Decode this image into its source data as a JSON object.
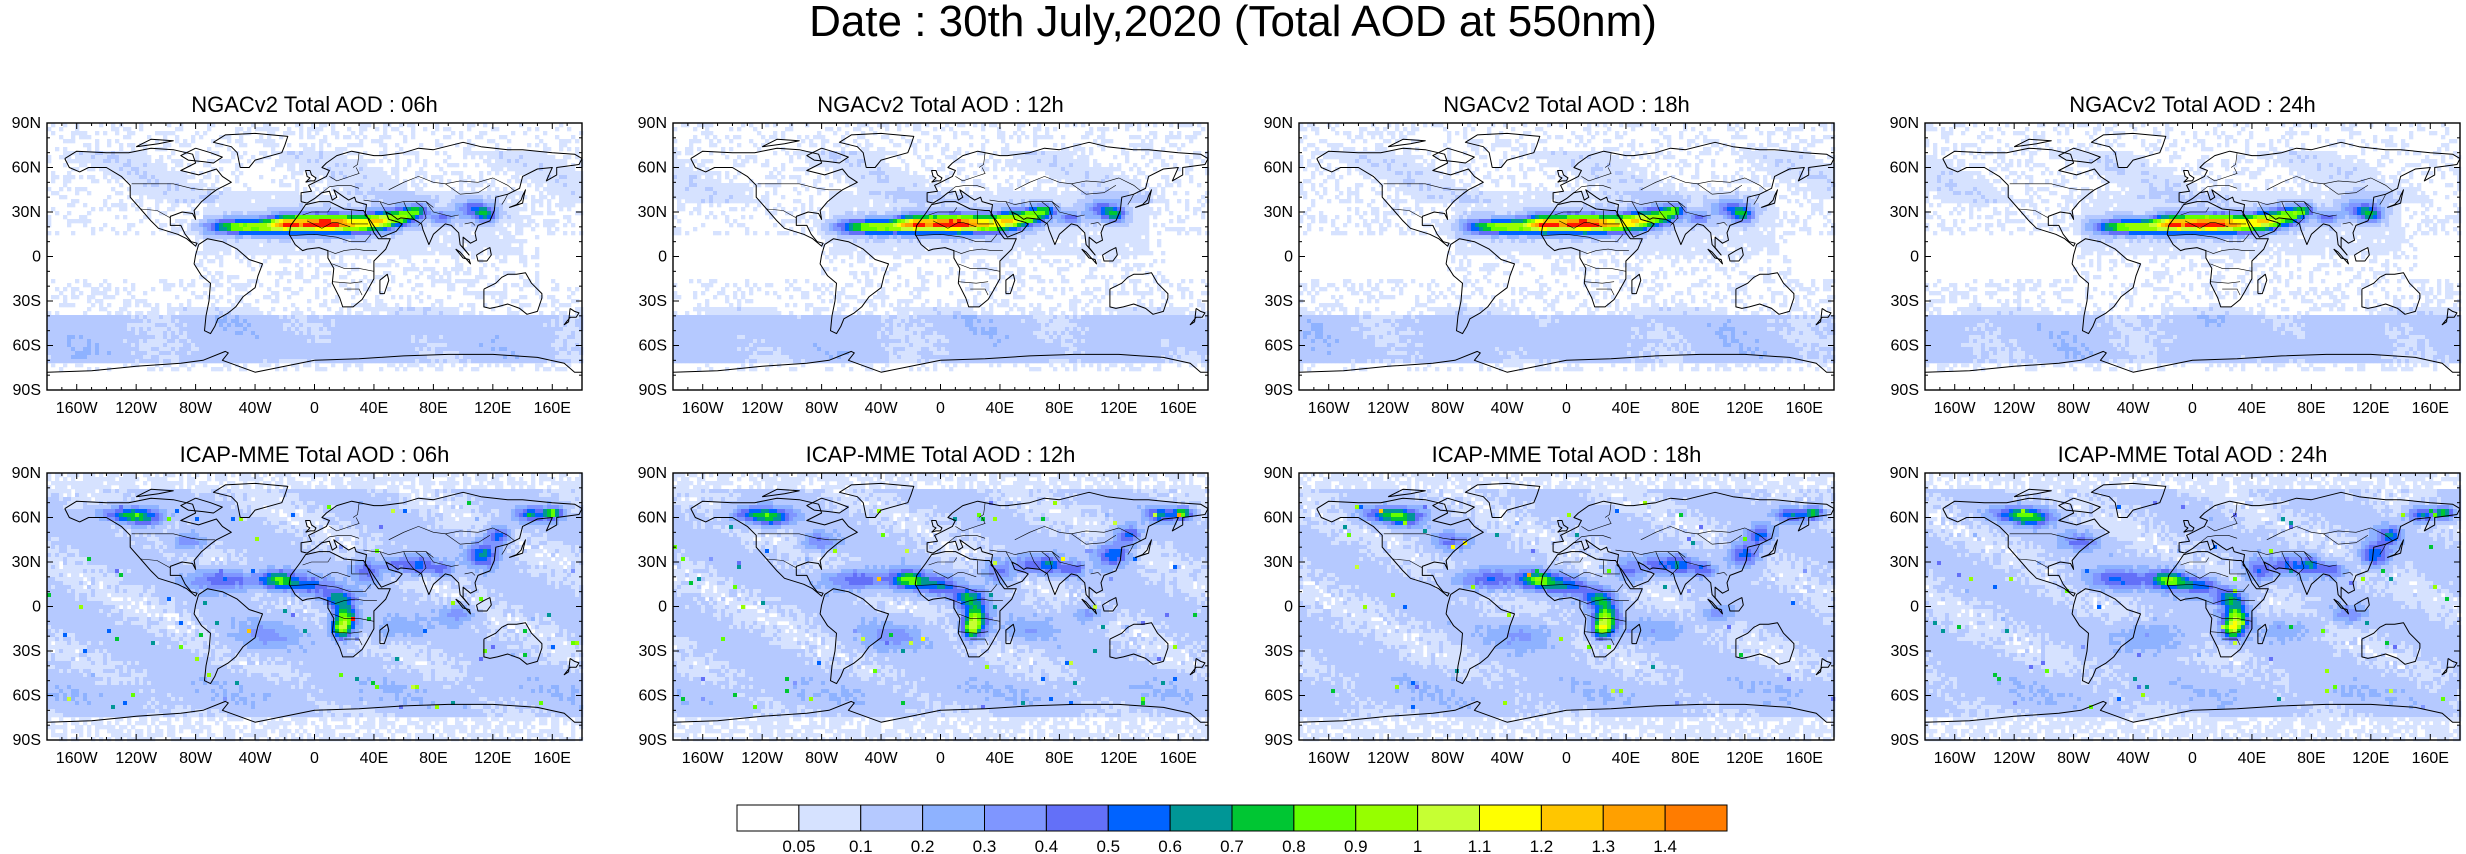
{
  "figure": {
    "title": "Date : 30th July,2020 (Total AOD at 550nm)"
  },
  "panels": [
    {
      "title": "NGACv2 Total AOD : 06h",
      "model": "NGACv2",
      "forecast_hour": "06h"
    },
    {
      "title": "NGACv2 Total AOD : 12h",
      "model": "NGACv2",
      "forecast_hour": "12h"
    },
    {
      "title": "NGACv2 Total AOD : 18h",
      "model": "NGACv2",
      "forecast_hour": "18h"
    },
    {
      "title": "NGACv2 Total AOD : 24h",
      "model": "NGACv2",
      "forecast_hour": "24h"
    },
    {
      "title": "ICAP-MME Total AOD : 06h",
      "model": "ICAP-MME",
      "forecast_hour": "06h"
    },
    {
      "title": "ICAP-MME Total AOD : 12h",
      "model": "ICAP-MME",
      "forecast_hour": "12h"
    },
    {
      "title": "ICAP-MME Total AOD : 18h",
      "model": "ICAP-MME",
      "forecast_hour": "18h"
    },
    {
      "title": "ICAP-MME Total AOD : 24h",
      "model": "ICAP-MME",
      "forecast_hour": "24h"
    }
  ],
  "lat_ticks": [
    "90N",
    "60N",
    "30N",
    "0",
    "30S",
    "60S",
    "90S"
  ],
  "lon_ticks": [
    "160W",
    "120W",
    "80W",
    "40W",
    "0",
    "40E",
    "80E",
    "120E",
    "160E"
  ],
  "colorbar": {
    "labels": [
      "0.05",
      "0.1",
      "0.2",
      "0.3",
      "0.4",
      "0.5",
      "0.6",
      "0.7",
      "0.8",
      "0.9",
      "1",
      "1.1",
      "1.2",
      "1.3",
      "1.4"
    ],
    "colors": [
      "#ffffff",
      "#d6e2ff",
      "#b5c9ff",
      "#8eb2ff",
      "#7f96ff",
      "#6370f8",
      "#0063ff",
      "#009696",
      "#00c633",
      "#63ff00",
      "#96ff00",
      "#c6ff33",
      "#ffff00",
      "#ffc600",
      "#ffa000",
      "#ff7c00",
      "#ff1900"
    ]
  }
}
